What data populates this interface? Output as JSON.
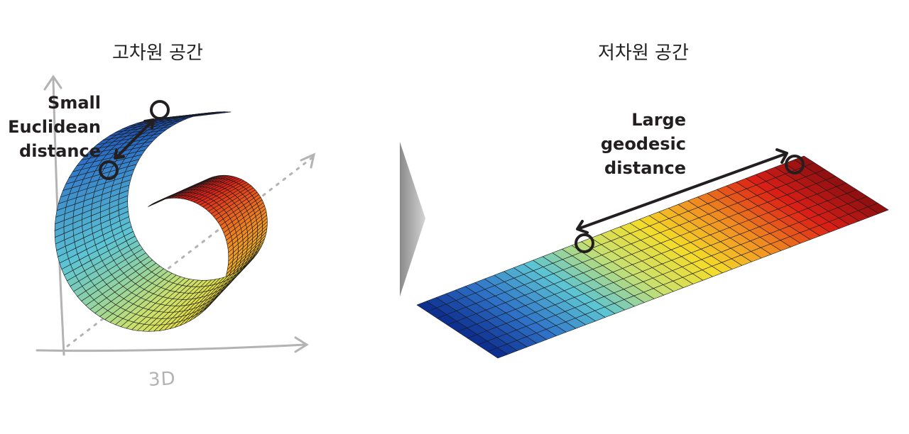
{
  "left_panel": {
    "title": "고차원 공간",
    "distance_label_lines": [
      "Small",
      "Euclidean",
      "distance"
    ],
    "axes_label": "3D",
    "shape": "swiss-roll-surface"
  },
  "right_panel": {
    "title": "저차원 공간",
    "distance_label_lines": [
      "Large",
      "geodesic",
      "distance"
    ],
    "shape": "unrolled-flat-sheet"
  },
  "colors": {
    "colormap": [
      "#0a2a8c",
      "#2f74c8",
      "#5cc4d4",
      "#c8e070",
      "#f5dc28",
      "#f08a20",
      "#dc2016",
      "#8c0e10"
    ],
    "mesh_line": "#1a1a1a",
    "arrow": "#231f20",
    "sketch_axes": "#b3b3b3",
    "transition_arrow": "#a8a8a8"
  }
}
